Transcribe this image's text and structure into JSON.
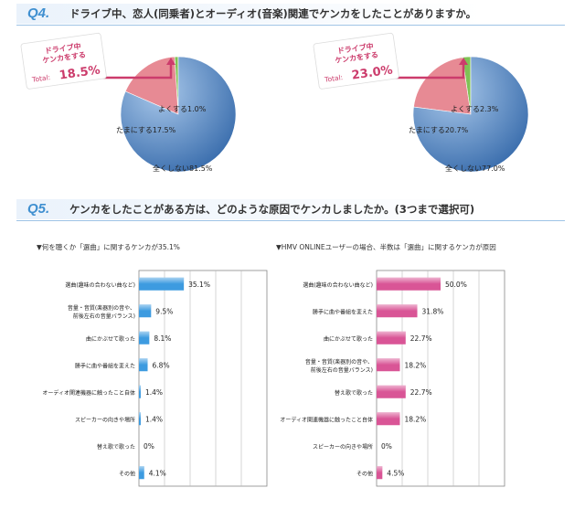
{
  "q4": {
    "number": "Q4.",
    "question": "ドライブ中、恋人(同乗者)とオーディオ(音楽)関連でケンカをしたことがありますか。"
  },
  "q5": {
    "number": "Q5.",
    "question": "ケンカをしたことがある方は、どのような原因でケンカしましたか。(3つまで選択可)"
  },
  "colors": {
    "title_accent": "#3f8fd0",
    "pie_blue": "#3c6fae",
    "pie_pink": "#e78a94",
    "pie_green": "#7fc255",
    "callout": "#cc3c6c",
    "bar_blue": "#3d9be0",
    "bar_pink": "#d95596"
  },
  "chart_data": [
    {
      "type": "pie",
      "callout": {
        "line1": "ドライブ中",
        "line2": "ケンカをする",
        "total_label": "Total",
        "total_value": "18.5%"
      },
      "slices": [
        {
          "label": "全くしない",
          "value": 81.5,
          "text": "全くしない81.5%"
        },
        {
          "label": "たまにする",
          "value": 17.5,
          "text": "たまにする17.5%"
        },
        {
          "label": "よくする",
          "value": 1.0,
          "text": "よくする1.0%"
        }
      ]
    },
    {
      "type": "pie",
      "callout": {
        "line1": "ドライブ中",
        "line2": "ケンカをする",
        "total_label": "Total",
        "total_value": "23.0%"
      },
      "slices": [
        {
          "label": "全くしない",
          "value": 77.0,
          "text": "全くしない77.0%"
        },
        {
          "label": "たまにする",
          "value": 20.7,
          "text": "たまにする20.7%"
        },
        {
          "label": "よくする",
          "value": 2.3,
          "text": "よくする2.3%"
        }
      ]
    },
    {
      "type": "bar",
      "orientation": "horizontal",
      "subtitle": "▼何を聴くか「選曲」に関するケンカが35.1%",
      "categories": [
        [
          "選曲(趣味の合わない曲など)"
        ],
        [
          "音量・音質(楽器別の音や、",
          "前後左右の音量バランス)"
        ],
        [
          "曲にかぶせて歌った"
        ],
        [
          "勝手に曲や番組を変えた"
        ],
        [
          "オーディオ関連機器に触ったこと自体"
        ],
        [
          "スピーカーの向きや場所"
        ],
        [
          "替え歌で歌った"
        ],
        [
          "その他"
        ]
      ],
      "values": [
        35.1,
        9.5,
        8.1,
        6.8,
        1.4,
        1.4,
        0,
        4.1
      ],
      "value_labels": [
        "35.1%",
        "9.5%",
        "8.1%",
        "6.8%",
        "1.4%",
        "1.4%",
        "0%",
        "4.1%"
      ],
      "xlim": [
        0,
        100
      ]
    },
    {
      "type": "bar",
      "orientation": "horizontal",
      "subtitle": "▼HMV ONLINEユーザーの場合、半数は「選曲」に関するケンカが原因",
      "categories": [
        [
          "選曲(趣味の合わない曲など)"
        ],
        [
          "勝手に曲や番組を変えた"
        ],
        [
          "曲にかぶせて歌った"
        ],
        [
          "音量・音質(楽器別の音や、",
          "前後左右の音量バランス)"
        ],
        [
          "替え歌で歌った"
        ],
        [
          "オーディオ関連機器に触ったこと自体"
        ],
        [
          "スピーカーの向きや場所"
        ],
        [
          "その他"
        ]
      ],
      "values": [
        50.0,
        31.8,
        22.7,
        18.2,
        22.7,
        18.2,
        0,
        4.5
      ],
      "value_labels": [
        "50.0%",
        "31.8%",
        "22.7%",
        "18.2%",
        "22.7%",
        "18.2%",
        "0%",
        "4.5%"
      ],
      "xlim": [
        0,
        100
      ]
    }
  ]
}
